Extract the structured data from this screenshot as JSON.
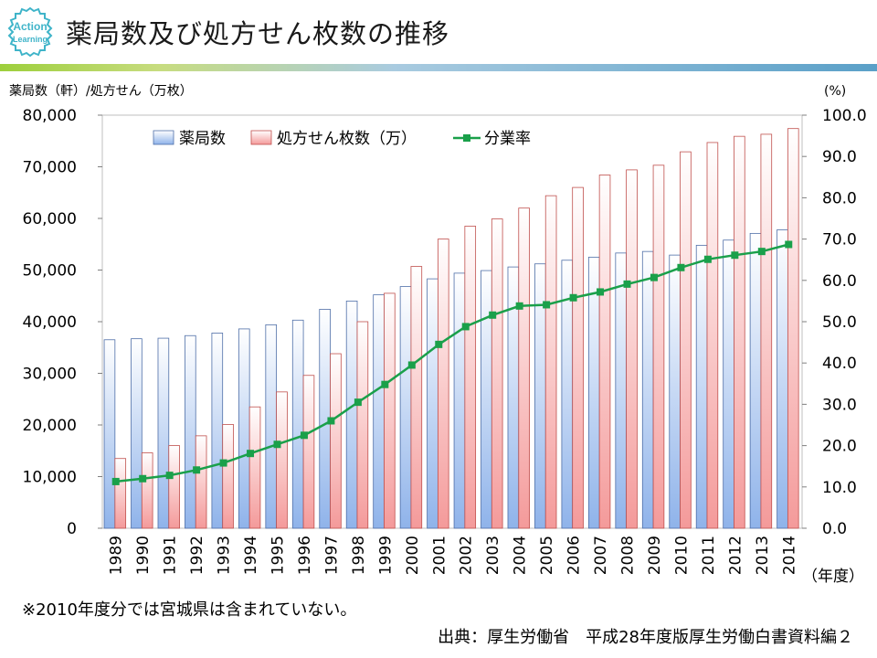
{
  "header": {
    "logo_text_1": "Action",
    "logo_text_2": "Learning",
    "title": "薬局数及び処方せん枚数の推移"
  },
  "footer": {
    "note": "※2010年度分では宮城県は含まれていない。",
    "source": "出典：厚生労働省　平成28年度版厚生労働白書資料編２"
  },
  "colors": {
    "bar_pharmacy": "#a9c4ee",
    "bar_prescription": "#f6b4b4",
    "line_rate": "#1aa04a"
  },
  "chart_data": {
    "type": "bar",
    "title": "",
    "ylabel_left": "薬局数（軒）/処方せん（万枚）",
    "ylabel_right": "(%)",
    "xlabel_unit": "（年度）",
    "grid": false,
    "legend_position": "top",
    "categories": [
      "1989",
      "1990",
      "1991",
      "1992",
      "1993",
      "1994",
      "1995",
      "1996",
      "1997",
      "1998",
      "1999",
      "2000",
      "2001",
      "2002",
      "2003",
      "2004",
      "2005",
      "2006",
      "2007",
      "2008",
      "2009",
      "2010",
      "2011",
      "2012",
      "2013",
      "2014"
    ],
    "ylim_left": [
      0,
      80000
    ],
    "yticks_left": [
      "0",
      "10,000",
      "20,000",
      "30,000",
      "40,000",
      "50,000",
      "60,000",
      "70,000",
      "80,000"
    ],
    "ylim_right": [
      0,
      100
    ],
    "yticks_right": [
      "0.0",
      "10.0",
      "20.0",
      "30.0",
      "40.0",
      "50.0",
      "60.0",
      "70.0",
      "80.0",
      "90.0",
      "100.0"
    ],
    "series": [
      {
        "name": "薬局数",
        "type": "bar",
        "axis": "left",
        "values": [
          36500,
          36700,
          36800,
          37300,
          37800,
          38600,
          39400,
          40300,
          42400,
          44000,
          45200,
          46800,
          48300,
          49400,
          49900,
          50600,
          51200,
          51900,
          52500,
          53300,
          53600,
          52900,
          54800,
          55800,
          57100,
          57800
        ]
      },
      {
        "name": "処方せん枚数（万）",
        "type": "bar",
        "axis": "left",
        "values": [
          13500,
          14600,
          16000,
          17900,
          20100,
          23500,
          26400,
          29600,
          33800,
          40000,
          45500,
          50700,
          56000,
          58500,
          59900,
          62000,
          64400,
          66000,
          68400,
          69400,
          70300,
          72900,
          74700,
          75900,
          76300,
          77400
        ]
      },
      {
        "name": "分業率",
        "type": "line",
        "axis": "right",
        "values": [
          11.3,
          12.0,
          12.8,
          14.1,
          15.8,
          18.1,
          20.3,
          22.5,
          26.0,
          30.5,
          34.8,
          39.5,
          44.5,
          48.8,
          51.6,
          53.8,
          54.1,
          55.8,
          57.2,
          59.1,
          60.7,
          63.1,
          65.1,
          66.1,
          67.0,
          68.7
        ]
      }
    ]
  }
}
